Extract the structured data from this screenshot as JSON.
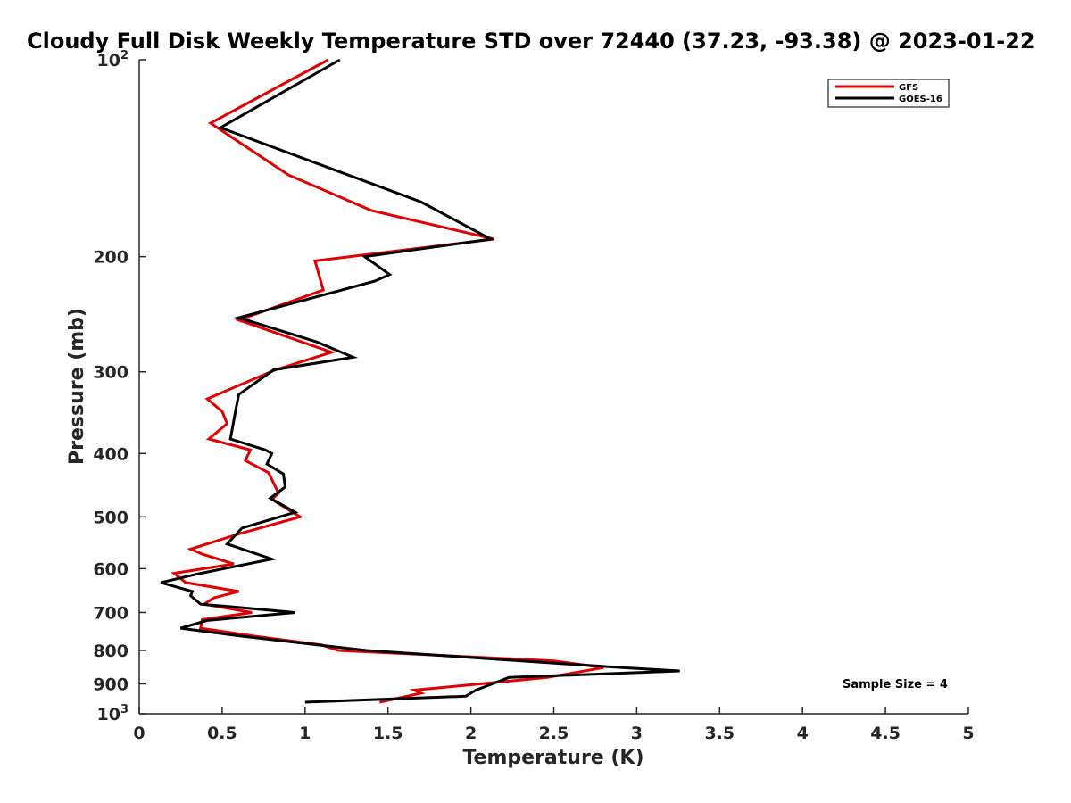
{
  "chart_data": {
    "type": "line",
    "title": "Cloudy Full Disk Weekly Temperature STD over 72440 (37.23, -93.38) @ 2023-01-22",
    "xlabel": "Temperature (K)",
    "ylabel": "Pressure (mb)",
    "xlim": [
      0,
      5
    ],
    "ylim": [
      100,
      1000
    ],
    "yscale": "log",
    "y_reversed": true,
    "x_ticks": [
      "0",
      "0.5",
      "1",
      "1.5",
      "2",
      "2.5",
      "3",
      "3.5",
      "4",
      "4.5",
      "5"
    ],
    "y_ticks": [
      {
        "value": 100,
        "label": "10",
        "sup": "2"
      },
      {
        "value": 200,
        "label": "200",
        "sup": ""
      },
      {
        "value": 300,
        "label": "300",
        "sup": ""
      },
      {
        "value": 400,
        "label": "400",
        "sup": ""
      },
      {
        "value": 500,
        "label": "500",
        "sup": ""
      },
      {
        "value": 600,
        "label": "600",
        "sup": ""
      },
      {
        "value": 700,
        "label": "700",
        "sup": ""
      },
      {
        "value": 800,
        "label": "800",
        "sup": ""
      },
      {
        "value": 900,
        "label": "900",
        "sup": ""
      },
      {
        "value": 1000,
        "label": "10",
        "sup": "3"
      }
    ],
    "legend_position": "top-right",
    "annotation": "Sample Size = 4",
    "series": [
      {
        "name": "GFS",
        "color": "#e00000",
        "points": [
          [
            1.14,
            100
          ],
          [
            0.43,
            125
          ],
          [
            0.9,
            150
          ],
          [
            1.4,
            170
          ],
          [
            2.14,
            188
          ],
          [
            1.06,
            203
          ],
          [
            1.11,
            225
          ],
          [
            0.6,
            250
          ],
          [
            1.16,
            280
          ],
          [
            0.82,
            298
          ],
          [
            0.41,
            330
          ],
          [
            0.5,
            345
          ],
          [
            0.53,
            360
          ],
          [
            0.42,
            380
          ],
          [
            0.67,
            395
          ],
          [
            0.64,
            410
          ],
          [
            0.78,
            428
          ],
          [
            0.84,
            460
          ],
          [
            0.8,
            470
          ],
          [
            0.97,
            500
          ],
          [
            0.61,
            530
          ],
          [
            0.31,
            560
          ],
          [
            0.38,
            570
          ],
          [
            0.57,
            590
          ],
          [
            0.21,
            610
          ],
          [
            0.28,
            630
          ],
          [
            0.6,
            650
          ],
          [
            0.45,
            665
          ],
          [
            0.39,
            680
          ],
          [
            0.68,
            700
          ],
          [
            0.38,
            718
          ],
          [
            0.37,
            740
          ],
          [
            0.68,
            760
          ],
          [
            1.1,
            785
          ],
          [
            1.2,
            800
          ],
          [
            2.5,
            830
          ],
          [
            2.8,
            850
          ],
          [
            2.46,
            880
          ],
          [
            1.66,
            920
          ],
          [
            1.7,
            930
          ],
          [
            1.45,
            960
          ]
        ]
      },
      {
        "name": "GOES-16",
        "color": "#000000",
        "points": [
          [
            1.21,
            100
          ],
          [
            0.49,
            127
          ],
          [
            1.7,
            165
          ],
          [
            2.12,
            188
          ],
          [
            1.36,
            200
          ],
          [
            1.51,
            213
          ],
          [
            1.42,
            218
          ],
          [
            0.6,
            248
          ],
          [
            1.07,
            270
          ],
          [
            1.29,
            285
          ],
          [
            0.81,
            298
          ],
          [
            0.6,
            325
          ],
          [
            0.58,
            345
          ],
          [
            0.55,
            380
          ],
          [
            0.76,
            395
          ],
          [
            0.8,
            400
          ],
          [
            0.77,
            415
          ],
          [
            0.87,
            430
          ],
          [
            0.88,
            450
          ],
          [
            0.79,
            468
          ],
          [
            0.94,
            492
          ],
          [
            0.62,
            520
          ],
          [
            0.53,
            550
          ],
          [
            0.8,
            580
          ],
          [
            0.37,
            610
          ],
          [
            0.13,
            630
          ],
          [
            0.32,
            650
          ],
          [
            0.31,
            660
          ],
          [
            0.37,
            680
          ],
          [
            0.53,
            685
          ],
          [
            0.94,
            700
          ],
          [
            0.41,
            720
          ],
          [
            0.25,
            740
          ],
          [
            0.6,
            760
          ],
          [
            1.08,
            785
          ],
          [
            1.37,
            800
          ],
          [
            2.91,
            850
          ],
          [
            3.26,
            860
          ],
          [
            2.23,
            880
          ],
          [
            2.03,
            920
          ],
          [
            1.97,
            940
          ],
          [
            1.0,
            960
          ]
        ]
      }
    ]
  }
}
